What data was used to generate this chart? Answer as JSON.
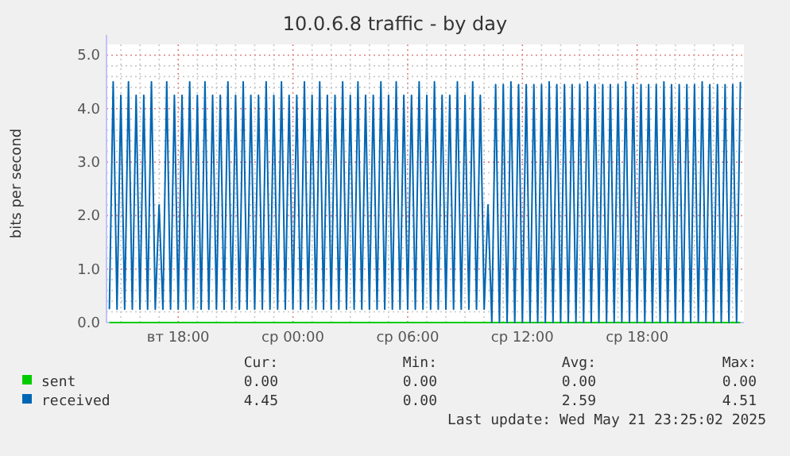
{
  "chart_data": {
    "type": "line",
    "title": "10.0.6.8 traffic - by day",
    "ylabel": "bits per second",
    "xlim": [
      "2025-05-20T14:15",
      "2025-05-21T23:35"
    ],
    "ylim": [
      0,
      5.2
    ],
    "xticks": [
      {
        "value": "2025-05-20T15:00",
        "label": null
      },
      {
        "value": "2025-05-20T16:00",
        "label": null
      },
      {
        "value": "2025-05-20T17:00",
        "label": null
      },
      {
        "value": "2025-05-20T18:00",
        "label": "вт 18:00"
      },
      {
        "value": "2025-05-20T19:00",
        "label": null
      },
      {
        "value": "2025-05-20T20:00",
        "label": null
      },
      {
        "value": "2025-05-20T21:00",
        "label": null
      },
      {
        "value": "2025-05-20T22:00",
        "label": null
      },
      {
        "value": "2025-05-20T23:00",
        "label": null
      },
      {
        "value": "2025-05-21T00:00",
        "label": "ср 00:00"
      },
      {
        "value": "2025-05-21T01:00",
        "label": null
      },
      {
        "value": "2025-05-21T02:00",
        "label": null
      },
      {
        "value": "2025-05-21T03:00",
        "label": null
      },
      {
        "value": "2025-05-21T04:00",
        "label": null
      },
      {
        "value": "2025-05-21T05:00",
        "label": null
      },
      {
        "value": "2025-05-21T06:00",
        "label": "ср 06:00"
      },
      {
        "value": "2025-05-21T07:00",
        "label": null
      },
      {
        "value": "2025-05-21T08:00",
        "label": null
      },
      {
        "value": "2025-05-21T09:00",
        "label": null
      },
      {
        "value": "2025-05-21T10:00",
        "label": null
      },
      {
        "value": "2025-05-21T11:00",
        "label": null
      },
      {
        "value": "2025-05-21T12:00",
        "label": "ср 12:00"
      },
      {
        "value": "2025-05-21T13:00",
        "label": null
      },
      {
        "value": "2025-05-21T14:00",
        "label": null
      },
      {
        "value": "2025-05-21T15:00",
        "label": null
      },
      {
        "value": "2025-05-21T16:00",
        "label": null
      },
      {
        "value": "2025-05-21T17:00",
        "label": null
      },
      {
        "value": "2025-05-21T18:00",
        "label": "ср 18:00"
      },
      {
        "value": "2025-05-21T19:00",
        "label": null
      },
      {
        "value": "2025-05-21T20:00",
        "label": null
      },
      {
        "value": "2025-05-21T21:00",
        "label": null
      },
      {
        "value": "2025-05-21T22:00",
        "label": null
      },
      {
        "value": "2025-05-21T23:00",
        "label": null
      }
    ],
    "yticks": [
      {
        "value": 0,
        "label": "0.0"
      },
      {
        "value": 0.2,
        "label": null
      },
      {
        "value": 0.4,
        "label": null
      },
      {
        "value": 0.6,
        "label": null
      },
      {
        "value": 0.8,
        "label": null
      },
      {
        "value": 1,
        "label": "1.0"
      },
      {
        "value": 1.2,
        "label": null
      },
      {
        "value": 1.4,
        "label": null
      },
      {
        "value": 1.6,
        "label": null
      },
      {
        "value": 1.8,
        "label": null
      },
      {
        "value": 2,
        "label": "2.0"
      },
      {
        "value": 2.2,
        "label": null
      },
      {
        "value": 2.4,
        "label": null
      },
      {
        "value": 2.6,
        "label": null
      },
      {
        "value": 2.8,
        "label": null
      },
      {
        "value": 3,
        "label": "3.0"
      },
      {
        "value": 3.2,
        "label": null
      },
      {
        "value": 3.4,
        "label": null
      },
      {
        "value": 3.6,
        "label": null
      },
      {
        "value": 3.8,
        "label": null
      },
      {
        "value": 4,
        "label": "4.0"
      },
      {
        "value": 4.2,
        "label": null
      },
      {
        "value": 4.4,
        "label": null
      },
      {
        "value": 4.6,
        "label": null
      },
      {
        "value": 4.8,
        "label": null
      },
      {
        "value": 5,
        "label": "5.0"
      }
    ],
    "grid": true,
    "legend": "bottom",
    "series": [
      {
        "name": "sent",
        "color": "#00cc00",
        "x": [
          "2025-05-20T14:24",
          "2025-05-21T23:24"
        ],
        "values": [
          0,
          0
        ]
      },
      {
        "name": "received",
        "color": "#0066b3",
        "x": [
          "2025-05-20T14:24",
          "2025-05-20T14:36",
          "2025-05-20T14:48",
          "2025-05-20T15:00",
          "2025-05-20T15:12",
          "2025-05-20T15:24",
          "2025-05-20T15:36",
          "2025-05-20T15:48",
          "2025-05-20T16:00",
          "2025-05-20T16:12",
          "2025-05-20T16:24",
          "2025-05-20T16:36",
          "2025-05-20T16:48",
          "2025-05-20T17:00",
          "2025-05-20T17:12",
          "2025-05-20T17:24",
          "2025-05-20T17:36",
          "2025-05-20T17:48",
          "2025-05-20T18:00",
          "2025-05-20T18:12",
          "2025-05-20T18:24",
          "2025-05-20T18:36",
          "2025-05-20T18:48",
          "2025-05-20T19:00",
          "2025-05-20T19:12",
          "2025-05-20T19:24",
          "2025-05-20T19:36",
          "2025-05-20T19:48",
          "2025-05-20T20:00",
          "2025-05-20T20:12",
          "2025-05-20T20:24",
          "2025-05-20T20:36",
          "2025-05-20T20:48",
          "2025-05-20T21:00",
          "2025-05-20T21:12",
          "2025-05-20T21:24",
          "2025-05-20T21:36",
          "2025-05-20T21:48",
          "2025-05-20T22:00",
          "2025-05-20T22:12",
          "2025-05-20T22:24",
          "2025-05-20T22:36",
          "2025-05-20T22:48",
          "2025-05-20T23:00",
          "2025-05-20T23:12",
          "2025-05-20T23:24",
          "2025-05-20T23:36",
          "2025-05-20T23:48",
          "2025-05-21T00:00",
          "2025-05-21T00:12",
          "2025-05-21T00:24",
          "2025-05-21T00:36",
          "2025-05-21T00:48",
          "2025-05-21T01:00",
          "2025-05-21T01:12",
          "2025-05-21T01:24",
          "2025-05-21T01:36",
          "2025-05-21T01:48",
          "2025-05-21T02:00",
          "2025-05-21T02:12",
          "2025-05-21T02:24",
          "2025-05-21T02:36",
          "2025-05-21T02:48",
          "2025-05-21T03:00",
          "2025-05-21T03:12",
          "2025-05-21T03:24",
          "2025-05-21T03:36",
          "2025-05-21T03:48",
          "2025-05-21T04:00",
          "2025-05-21T04:12",
          "2025-05-21T04:24",
          "2025-05-21T04:36",
          "2025-05-21T04:48",
          "2025-05-21T05:00",
          "2025-05-21T05:12",
          "2025-05-21T05:24",
          "2025-05-21T05:36",
          "2025-05-21T05:48",
          "2025-05-21T06:00",
          "2025-05-21T06:12",
          "2025-05-21T06:24",
          "2025-05-21T06:36",
          "2025-05-21T06:48",
          "2025-05-21T07:00",
          "2025-05-21T07:12",
          "2025-05-21T07:24",
          "2025-05-21T07:36",
          "2025-05-21T07:48",
          "2025-05-21T08:00",
          "2025-05-21T08:12",
          "2025-05-21T08:24",
          "2025-05-21T08:36",
          "2025-05-21T08:48",
          "2025-05-21T09:00",
          "2025-05-21T09:12",
          "2025-05-21T09:24",
          "2025-05-21T09:36",
          "2025-05-21T09:48",
          "2025-05-21T10:00",
          "2025-05-21T10:12",
          "2025-05-21T10:24",
          "2025-05-21T10:36",
          "2025-05-21T10:48",
          "2025-05-21T11:00",
          "2025-05-21T11:12",
          "2025-05-21T11:24",
          "2025-05-21T11:36",
          "2025-05-21T11:48",
          "2025-05-21T12:00",
          "2025-05-21T12:12",
          "2025-05-21T12:24",
          "2025-05-21T12:36",
          "2025-05-21T12:48",
          "2025-05-21T13:00",
          "2025-05-21T13:12",
          "2025-05-21T13:24",
          "2025-05-21T13:36",
          "2025-05-21T13:48",
          "2025-05-21T14:00",
          "2025-05-21T14:12",
          "2025-05-21T14:24",
          "2025-05-21T14:36",
          "2025-05-21T14:48",
          "2025-05-21T15:00",
          "2025-05-21T15:12",
          "2025-05-21T15:24",
          "2025-05-21T15:36",
          "2025-05-21T15:48",
          "2025-05-21T16:00",
          "2025-05-21T16:12",
          "2025-05-21T16:24",
          "2025-05-21T16:36",
          "2025-05-21T16:48",
          "2025-05-21T17:00",
          "2025-05-21T17:12",
          "2025-05-21T17:24",
          "2025-05-21T17:36",
          "2025-05-21T17:48",
          "2025-05-21T18:00",
          "2025-05-21T18:12",
          "2025-05-21T18:24",
          "2025-05-21T18:36",
          "2025-05-21T18:48",
          "2025-05-21T19:00",
          "2025-05-21T19:12",
          "2025-05-21T19:24",
          "2025-05-21T19:36",
          "2025-05-21T19:48",
          "2025-05-21T20:00",
          "2025-05-21T20:12",
          "2025-05-21T20:24",
          "2025-05-21T20:36",
          "2025-05-21T20:48",
          "2025-05-21T21:00",
          "2025-05-21T21:12",
          "2025-05-21T21:24",
          "2025-05-21T21:36",
          "2025-05-21T21:48",
          "2025-05-21T22:00",
          "2025-05-21T22:12",
          "2025-05-21T22:24",
          "2025-05-21T22:36",
          "2025-05-21T22:48",
          "2025-05-21T23:00",
          "2025-05-21T23:12",
          "2025-05-21T23:24"
        ],
        "values": [
          0.25,
          4.5,
          0.25,
          4.25,
          0.25,
          4.5,
          0.25,
          4.25,
          0.25,
          4.25,
          0.25,
          4.5,
          0.25,
          2.2,
          0.25,
          4.5,
          0.25,
          4.25,
          0.25,
          4.25,
          0.25,
          4.5,
          0.25,
          4.25,
          0.25,
          4.5,
          0.25,
          4.25,
          0.25,
          4.25,
          0.25,
          4.5,
          0.25,
          4.25,
          0.25,
          4.5,
          0.25,
          4.25,
          0.25,
          4.25,
          0.25,
          4.5,
          0.25,
          4.25,
          0.25,
          4.5,
          0.25,
          4.25,
          0.25,
          4.25,
          0.25,
          4.5,
          0.25,
          4.25,
          0.25,
          4.5,
          0.25,
          4.25,
          0.25,
          4.25,
          0.25,
          4.5,
          0.25,
          4.25,
          0.25,
          4.5,
          0.25,
          4.25,
          0.25,
          4.25,
          0.25,
          4.5,
          0.25,
          4.25,
          0.25,
          4.5,
          0.25,
          4.25,
          0.25,
          4.25,
          0.25,
          4.5,
          0.25,
          4.25,
          0.25,
          4.5,
          0.25,
          4.25,
          0.25,
          4.25,
          0.25,
          4.5,
          0.25,
          4.25,
          0.25,
          4.5,
          0.25,
          4.25,
          0.25,
          2.2,
          0,
          4.45,
          0,
          4.45,
          0,
          4.5,
          0,
          4.45,
          0,
          4.45,
          0,
          4.45,
          0,
          4.45,
          0,
          4.5,
          0,
          4.45,
          0,
          4.45,
          0,
          4.45,
          0,
          4.45,
          0,
          4.5,
          0,
          4.45,
          0,
          4.45,
          0,
          4.45,
          0,
          4.45,
          0,
          4.5,
          0,
          4.45,
          0,
          4.45,
          0,
          4.45,
          0,
          4.45,
          0,
          4.5,
          0,
          4.45,
          0,
          4.45,
          0,
          4.45,
          0,
          4.45,
          0,
          4.5,
          0,
          4.45,
          0,
          4.45,
          0,
          4.45,
          0,
          4.45,
          0,
          4.5
        ]
      }
    ],
    "annotations": [
      "Cur:",
      "Min:",
      "Avg:",
      "Max:",
      "0.00",
      "0.00",
      "0.00",
      "0.00",
      "4.45",
      "0.00",
      "2.59",
      "4.51",
      "Last update: Wed May 21 23:25:02 2025"
    ]
  }
}
